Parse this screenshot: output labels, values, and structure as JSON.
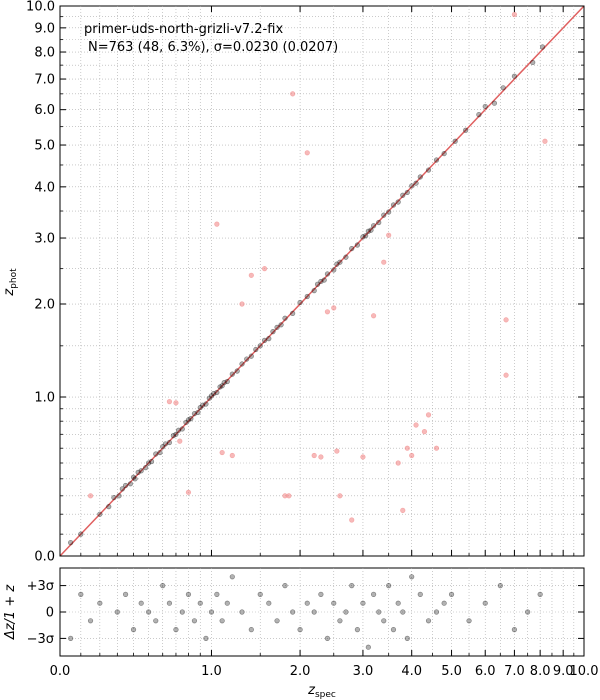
{
  "chart_data": [
    {
      "type": "scatter",
      "panel": "main",
      "title": "primer-uds-north-grizli-v7.2-fix",
      "stats": "N=763 (48,  6.3%), σ=0.0230 (0.0207)",
      "ylabel": "z",
      "ylabel_sub": "phot",
      "xscale": "log(1+z)",
      "yscale": "log(1+z)",
      "xlim": [
        0,
        10
      ],
      "ylim": [
        0,
        10
      ],
      "grid": true,
      "ticks": [
        {
          "v": 0.0,
          "label": "0.0"
        },
        {
          "v": 1.0,
          "label": "1.0"
        },
        {
          "v": 2.0,
          "label": "2.0"
        },
        {
          "v": 3.0,
          "label": "3.0"
        },
        {
          "v": 4.0,
          "label": "4.0"
        },
        {
          "v": 5.0,
          "label": "5.0"
        },
        {
          "v": 6.0,
          "label": "6.0"
        },
        {
          "v": 7.0,
          "label": "7.0"
        },
        {
          "v": 8.0,
          "label": "8.0"
        },
        {
          "v": 9.0,
          "label": "9.0"
        },
        {
          "v": 10.0,
          "label": "10.0"
        }
      ],
      "one_to_one_line_color": "#e06060",
      "series": [
        {
          "role": "good",
          "color": "#000000",
          "x": [
            0.05,
            0.1,
            0.2,
            0.25,
            0.28,
            0.31,
            0.33,
            0.35,
            0.38,
            0.4,
            0.41,
            0.43,
            0.45,
            0.48,
            0.5,
            0.52,
            0.55,
            0.58,
            0.6,
            0.62,
            0.65,
            0.68,
            0.7,
            0.72,
            0.75,
            0.78,
            0.8,
            0.82,
            0.85,
            0.88,
            0.9,
            0.92,
            0.95,
            0.98,
            1.0,
            1.02,
            1.05,
            1.08,
            1.1,
            1.12,
            1.15,
            1.2,
            1.25,
            1.3,
            1.35,
            1.4,
            1.45,
            1.5,
            1.55,
            1.6,
            1.65,
            1.7,
            1.75,
            1.8,
            1.9,
            2.0,
            2.1,
            2.2,
            2.25,
            2.3,
            2.35,
            2.4,
            2.5,
            2.55,
            2.6,
            2.7,
            2.8,
            2.9,
            3.0,
            3.05,
            3.1,
            3.15,
            3.2,
            3.3,
            3.4,
            3.5,
            3.6,
            3.7,
            3.8,
            3.9,
            4.0,
            4.1,
            4.2,
            4.4,
            4.6,
            4.8,
            5.1,
            5.4,
            5.8,
            6.0,
            6.3,
            6.6,
            7.0,
            7.7,
            8.1
          ],
          "y": [
            0.06,
            0.1,
            0.2,
            0.24,
            0.29,
            0.3,
            0.34,
            0.36,
            0.37,
            0.41,
            0.4,
            0.44,
            0.45,
            0.47,
            0.5,
            0.51,
            0.56,
            0.57,
            0.61,
            0.63,
            0.64,
            0.69,
            0.7,
            0.73,
            0.74,
            0.79,
            0.81,
            0.82,
            0.86,
            0.87,
            0.91,
            0.93,
            0.94,
            0.99,
            1.01,
            1.03,
            1.04,
            1.09,
            1.1,
            1.13,
            1.14,
            1.21,
            1.24,
            1.31,
            1.36,
            1.39,
            1.46,
            1.5,
            1.56,
            1.58,
            1.66,
            1.71,
            1.74,
            1.82,
            1.88,
            2.02,
            2.1,
            2.18,
            2.27,
            2.31,
            2.33,
            2.42,
            2.48,
            2.57,
            2.6,
            2.68,
            2.82,
            2.88,
            3.02,
            3.04,
            3.12,
            3.14,
            3.22,
            3.28,
            3.42,
            3.48,
            3.62,
            3.68,
            3.82,
            3.88,
            4.02,
            4.08,
            4.22,
            4.38,
            4.62,
            4.78,
            5.1,
            5.4,
            5.85,
            6.1,
            6.2,
            6.7,
            7.1,
            7.6,
            8.2
          ]
        },
        {
          "role": "outlier",
          "color": "#f08080",
          "x": [
            0.15,
            0.65,
            0.7,
            0.73,
            0.8,
            1.05,
            1.1,
            1.2,
            1.3,
            1.4,
            1.55,
            1.8,
            1.85,
            1.9,
            2.1,
            2.2,
            2.3,
            2.4,
            2.5,
            2.55,
            2.6,
            2.8,
            3.0,
            3.2,
            3.4,
            3.5,
            3.7,
            3.8,
            3.9,
            4.0,
            4.1,
            4.3,
            4.4,
            4.6,
            6.7,
            6.7,
            7.0,
            8.2
          ],
          "y": [
            0.3,
            0.96,
            0.95,
            0.65,
            0.32,
            3.25,
            0.57,
            0.55,
            2.0,
            2.4,
            2.5,
            0.3,
            0.3,
            6.5,
            4.8,
            0.55,
            0.54,
            1.9,
            1.95,
            0.58,
            0.3,
            0.17,
            0.54,
            1.85,
            2.6,
            3.05,
            0.5,
            0.22,
            0.6,
            0.55,
            0.77,
            0.72,
            0.85,
            0.6,
            1.8,
            1.2,
            9.6,
            5.1
          ]
        }
      ]
    },
    {
      "type": "scatter",
      "panel": "residuals",
      "ylabel": "Δz/1 + z",
      "xlabel": "z",
      "xlabel_sub": "spec",
      "sigma": 0.023,
      "ylim_sigma": [
        -5,
        5
      ],
      "ytick_labels": [
        "+3σ",
        "0",
        "−3σ"
      ],
      "x": [
        0.05,
        0.1,
        0.15,
        0.2,
        0.3,
        0.35,
        0.4,
        0.45,
        0.5,
        0.55,
        0.6,
        0.65,
        0.7,
        0.75,
        0.8,
        0.85,
        0.9,
        0.95,
        1.0,
        1.05,
        1.1,
        1.15,
        1.2,
        1.3,
        1.4,
        1.5,
        1.6,
        1.7,
        1.8,
        1.9,
        2.0,
        2.1,
        2.2,
        2.3,
        2.4,
        2.5,
        2.6,
        2.7,
        2.8,
        2.9,
        3.0,
        3.1,
        3.2,
        3.3,
        3.4,
        3.5,
        3.6,
        3.7,
        3.8,
        3.9,
        4.0,
        4.2,
        4.4,
        4.6,
        4.8,
        5.0,
        5.5,
        6.0,
        6.5,
        7.0,
        7.5,
        8.0
      ],
      "dz_sigma": [
        -3,
        2,
        -1,
        1,
        0,
        2,
        -2,
        1,
        0,
        -1,
        3,
        1,
        -2,
        0,
        2,
        -1,
        1,
        -3,
        0,
        2,
        -1,
        1,
        4,
        0,
        -2,
        2,
        1,
        -1,
        3,
        0,
        -2,
        1,
        0,
        2,
        -3,
        1,
        -1,
        0,
        3,
        -2,
        1,
        -4,
        2,
        0,
        -1,
        3,
        -2,
        1,
        0,
        -3,
        4,
        2,
        -1,
        0,
        1,
        2,
        -1,
        1,
        3,
        -2,
        0,
        2
      ]
    }
  ]
}
